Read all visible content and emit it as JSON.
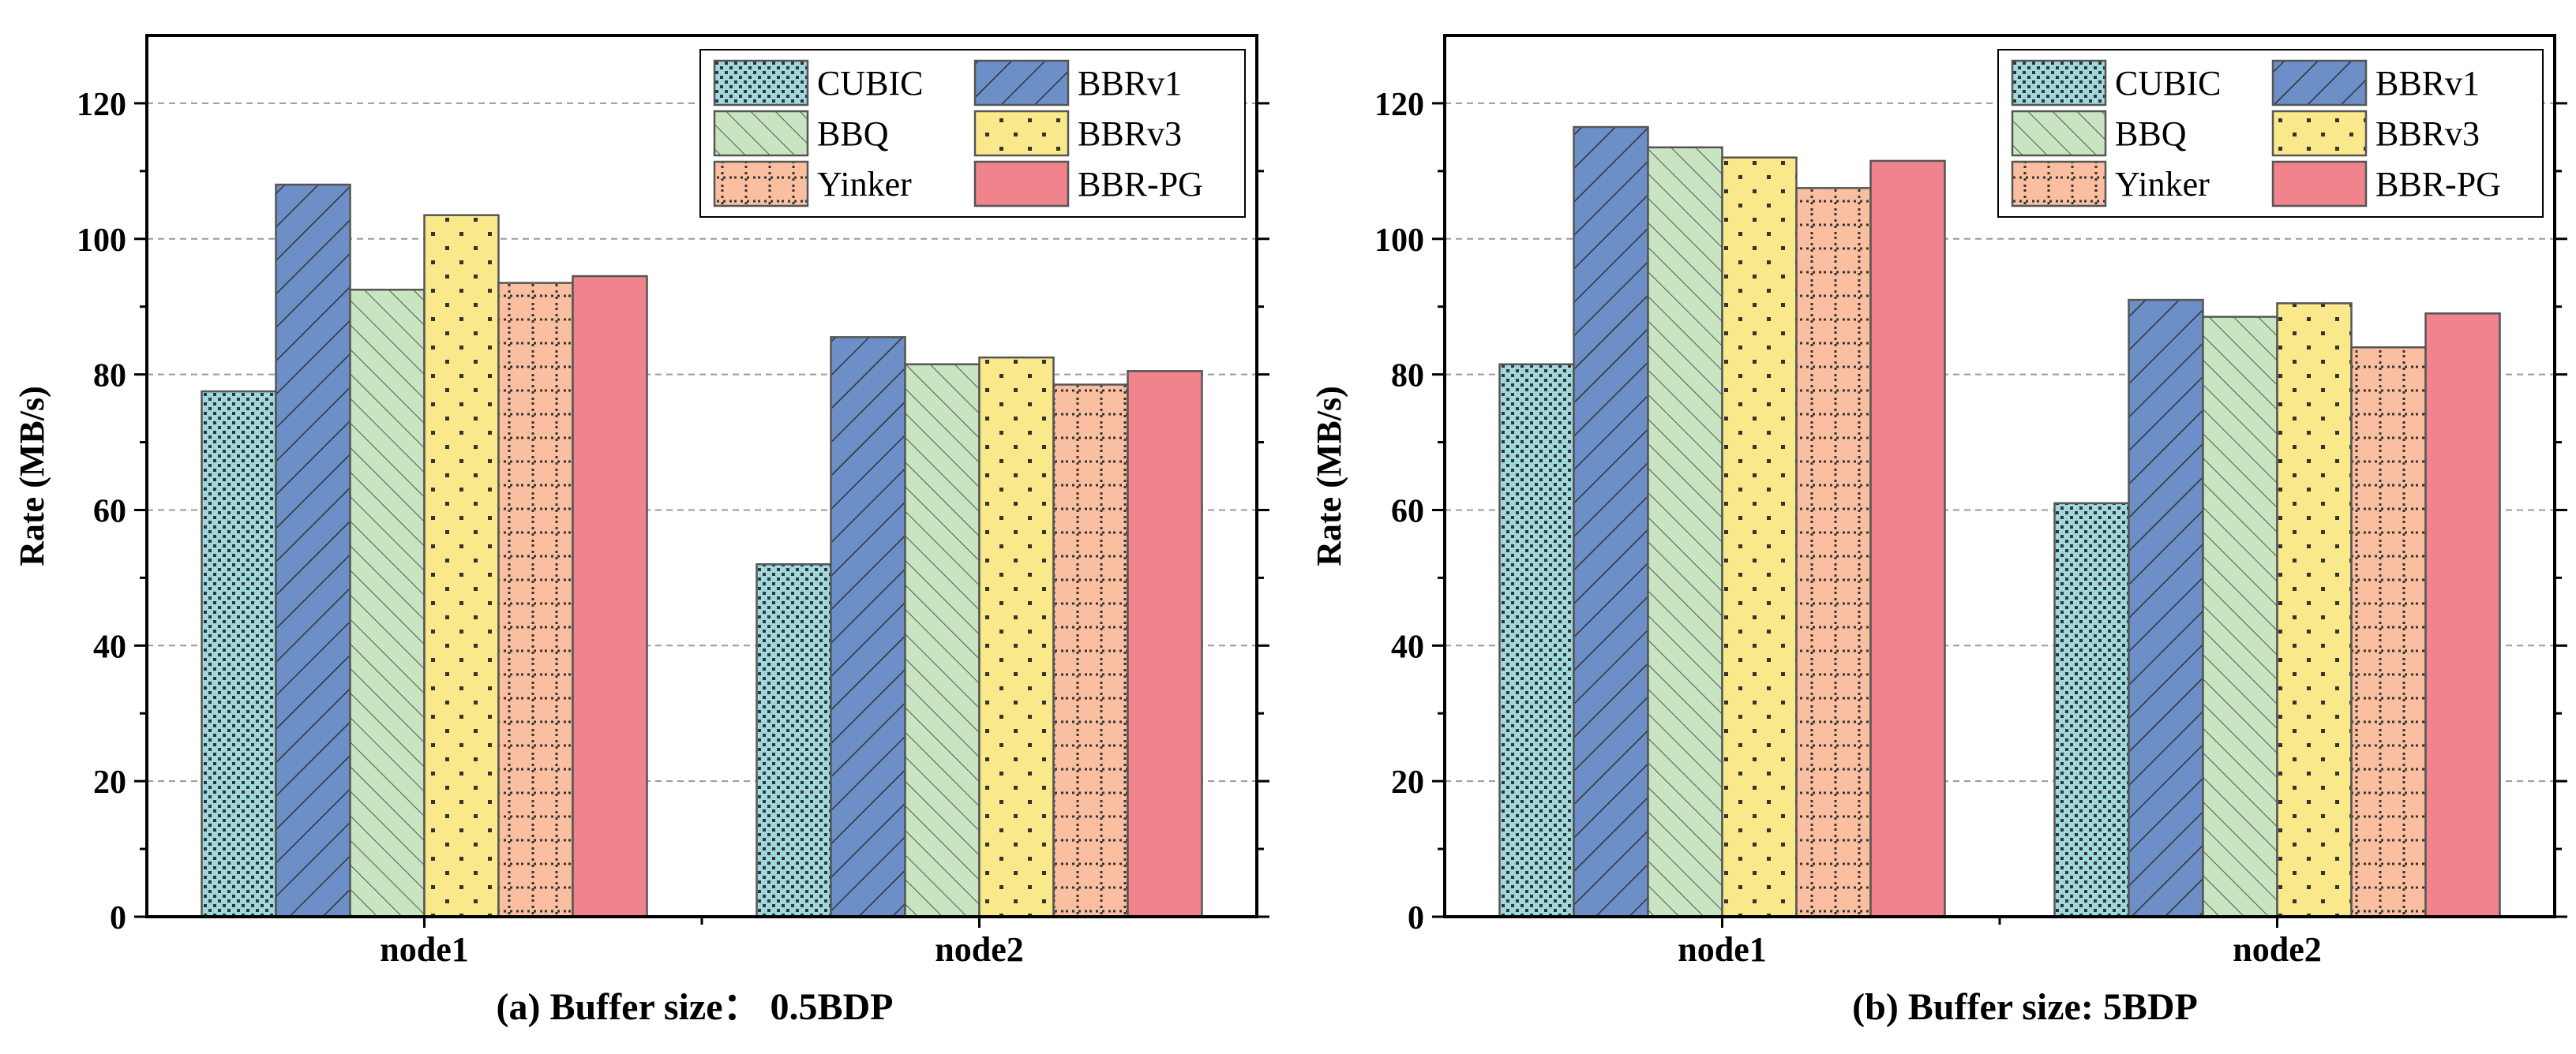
{
  "colors": {
    "CUBIC": "#9fd8dc",
    "BBRv1": "#6c8fc7",
    "BBQ": "#c9e4c1",
    "BBRv3": "#f9e98a",
    "Yinker": "#f9bfa0",
    "BBR-PG": "#f0838b"
  },
  "chart_data": [
    {
      "type": "bar",
      "title": "(a) Buffer size： 0.5BDP",
      "xlabel": "",
      "ylabel": "Rate (MB/s)",
      "ylim": [
        0,
        130
      ],
      "yticks": [
        "0",
        "20",
        "40",
        "60",
        "80",
        "100",
        "120"
      ],
      "grid": true,
      "legend_position": "top-right",
      "categories": [
        "node1",
        "node2"
      ],
      "series": [
        {
          "name": "CUBIC",
          "values": [
            77.5,
            52
          ]
        },
        {
          "name": "BBRv1",
          "values": [
            108,
            85.5
          ]
        },
        {
          "name": "BBQ",
          "values": [
            92.5,
            81.5
          ]
        },
        {
          "name": "BBRv3",
          "values": [
            103.5,
            82.5
          ]
        },
        {
          "name": "Yinker",
          "values": [
            93.5,
            78.5
          ]
        },
        {
          "name": "BBR-PG",
          "values": [
            94.5,
            80.5
          ]
        }
      ]
    },
    {
      "type": "bar",
      "title": "(b) Buffer size: 5BDP",
      "xlabel": "",
      "ylabel": "Rate (MB/s)",
      "ylim": [
        0,
        130
      ],
      "yticks": [
        "0",
        "20",
        "40",
        "60",
        "80",
        "100",
        "120"
      ],
      "grid": true,
      "legend_position": "top-right",
      "categories": [
        "node1",
        "node2"
      ],
      "series": [
        {
          "name": "CUBIC",
          "values": [
            81.5,
            61
          ]
        },
        {
          "name": "BBRv1",
          "values": [
            116.5,
            91
          ]
        },
        {
          "name": "BBQ",
          "values": [
            113.5,
            88.5
          ]
        },
        {
          "name": "BBRv3",
          "values": [
            112,
            90.5
          ]
        },
        {
          "name": "Yinker",
          "values": [
            107.5,
            84
          ]
        },
        {
          "name": "BBR-PG",
          "values": [
            111.5,
            89
          ]
        }
      ]
    }
  ]
}
